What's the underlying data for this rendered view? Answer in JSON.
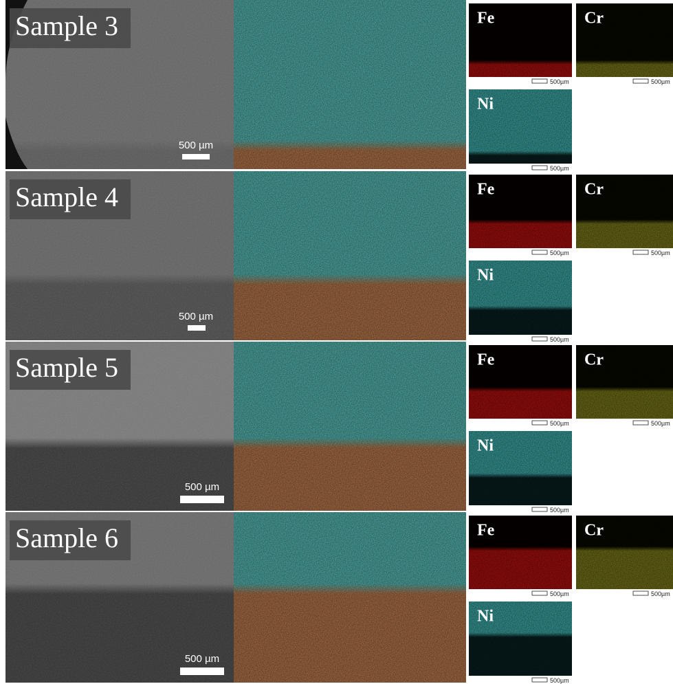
{
  "rows": [
    {
      "sample": "Sample 3",
      "scale_bar": "500 µm",
      "maps": [
        {
          "element": "Fe",
          "scale": "500µm"
        },
        {
          "element": "Cr",
          "scale": "500µm"
        },
        {
          "element": "Ni",
          "scale": "500µm"
        }
      ]
    },
    {
      "sample": "Sample 4",
      "scale_bar": "500 µm",
      "maps": [
        {
          "element": "Fe",
          "scale": "500µm"
        },
        {
          "element": "Cr",
          "scale": "500µm"
        },
        {
          "element": "Ni",
          "scale": "500µm"
        }
      ]
    },
    {
      "sample": "Sample 5",
      "scale_bar": "500 µm",
      "maps": [
        {
          "element": "Fe",
          "scale": "500µm"
        },
        {
          "element": "Cr",
          "scale": "500µm"
        },
        {
          "element": "Ni",
          "scale": "500µm"
        }
      ]
    },
    {
      "sample": "Sample 6",
      "scale_bar": "500 µm",
      "maps": [
        {
          "element": "Fe",
          "scale": "500µm"
        },
        {
          "element": "Cr",
          "scale": "500µm"
        },
        {
          "element": "Ni",
          "scale": "500µm"
        }
      ]
    }
  ]
}
